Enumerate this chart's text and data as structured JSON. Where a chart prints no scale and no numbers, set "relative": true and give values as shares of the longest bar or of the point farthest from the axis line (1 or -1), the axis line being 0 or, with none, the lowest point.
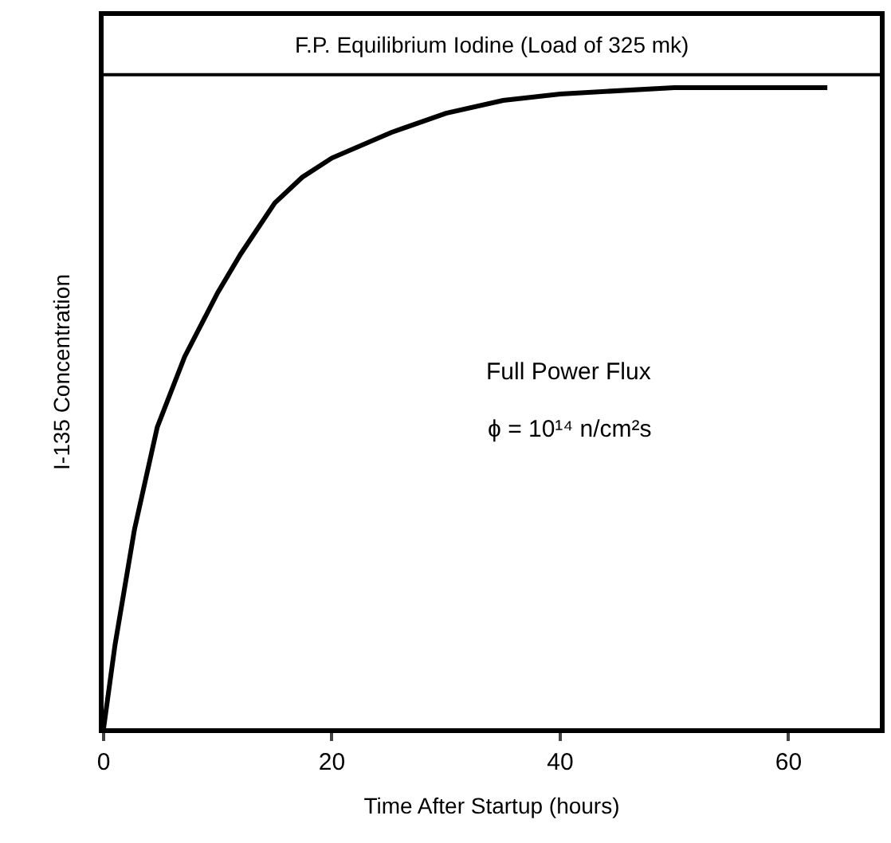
{
  "chart_data": {
    "type": "line",
    "relative": true,
    "xlabel": "Time After Startup (hours)",
    "ylabel": "I-135 Concentration",
    "x": [
      0,
      1,
      2.7,
      4.7,
      7.1,
      10,
      12,
      15,
      17.4,
      20,
      25.2,
      30,
      35,
      40,
      50,
      63.4
    ],
    "series": [
      {
        "color": "#000000",
        "values": [
          0,
          0.13,
          0.31,
          0.47,
          0.58,
          0.68,
          0.74,
          0.82,
          0.86,
          0.89,
          0.93,
          0.96,
          0.98,
          0.99,
          1,
          1
        ]
      }
    ],
    "xlim": [
      0,
      68
    ],
    "xticks": [
      0,
      20,
      40,
      60
    ],
    "ref_lines": [
      {
        "axis": "y",
        "value": 1.02,
        "label": "F.P. Equilibrium Iodine (Load of 325 mk)",
        "color": "#000000"
      }
    ],
    "annotations": [
      "Full Power Flux",
      "ϕ = 10¹⁴ n/cm²s"
    ],
    "marker": "none",
    "line_style": "solid"
  }
}
